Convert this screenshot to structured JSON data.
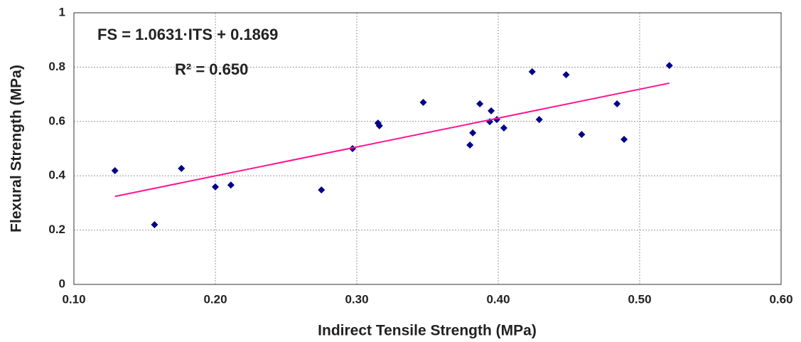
{
  "chart_data": {
    "type": "scatter",
    "xlabel": "Indirect Tensile Strength (MPa)",
    "ylabel": "Flexural Strength (MPa)",
    "annotations": [
      "FS = 1.0631·ITS + 0.1869",
      "R² = 0.650"
    ],
    "xlim": [
      0.1,
      0.6
    ],
    "xticks": [
      {
        "value": 0.1,
        "label": "0.10"
      },
      {
        "value": 0.2,
        "label": "0.20"
      },
      {
        "value": 0.3,
        "label": "0.30"
      },
      {
        "value": 0.4,
        "label": "0.40"
      },
      {
        "value": 0.5,
        "label": "0.50"
      },
      {
        "value": 0.6,
        "label": "0.60"
      }
    ],
    "ylim": [
      0,
      1
    ],
    "yticks": [
      0,
      0.2,
      0.4,
      0.6,
      0.8,
      1
    ],
    "grid": true,
    "series": [
      {
        "color": "#00008b",
        "mode": "markers",
        "x": [
          0.129,
          0.157,
          0.176,
          0.2,
          0.211,
          0.275,
          0.297,
          0.315,
          0.316,
          0.347,
          0.38,
          0.382,
          0.387,
          0.395,
          0.394,
          0.399,
          0.404,
          0.424,
          0.429,
          0.448,
          0.459,
          0.484,
          0.489,
          0.521
        ],
        "values": [
          0.419,
          0.22,
          0.427,
          0.359,
          0.366,
          0.348,
          0.5,
          0.594,
          0.584,
          0.67,
          0.513,
          0.558,
          0.665,
          0.639,
          0.599,
          0.607,
          0.576,
          0.783,
          0.607,
          0.772,
          0.552,
          0.665,
          0.534,
          0.806
        ]
      },
      {
        "color": "#ff1493",
        "mode": "line",
        "x": [
          0.129,
          0.521
        ],
        "values": [
          0.324,
          0.741
        ]
      }
    ]
  }
}
